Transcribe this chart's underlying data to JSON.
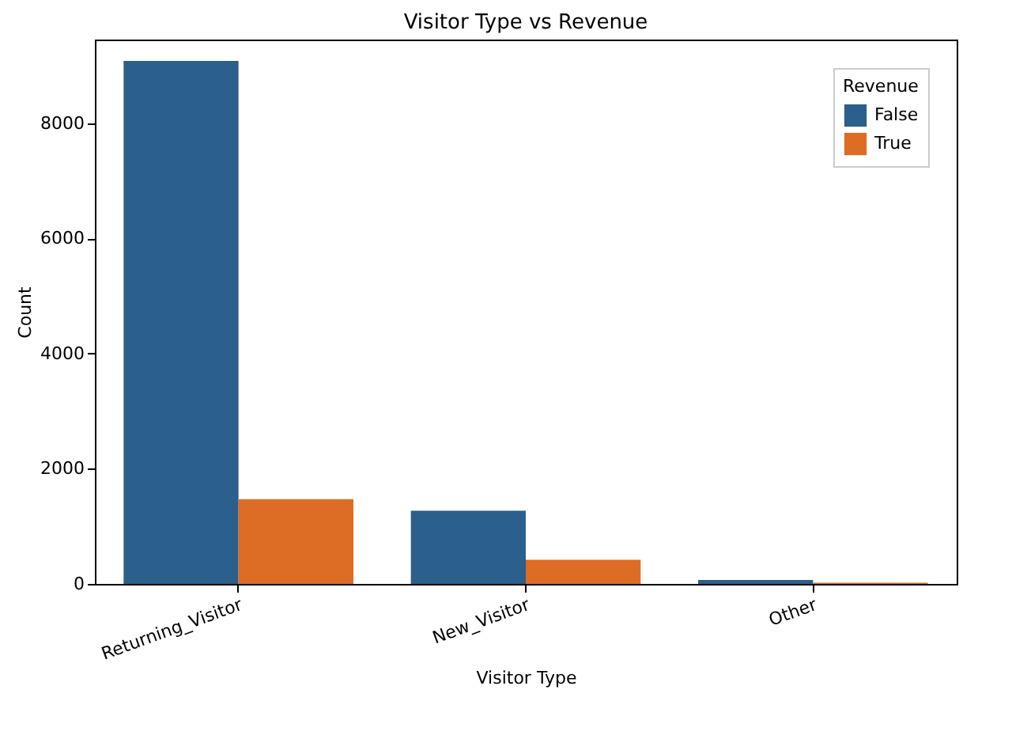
{
  "chart_data": {
    "type": "bar",
    "title": "Visitor Type vs Revenue",
    "xlabel": "Visitor Type",
    "ylabel": "Count",
    "legend_title": "Revenue",
    "categories": [
      "Returning_Visitor",
      "New_Visitor",
      "Other"
    ],
    "series": [
      {
        "name": "False",
        "color": "#2b5f8c",
        "values": [
          9080,
          1270,
          70
        ]
      },
      {
        "name": "True",
        "color": "#dd6c24",
        "values": [
          1470,
          420,
          20
        ]
      }
    ],
    "ylim": [
      0,
      9450
    ],
    "yticks": [
      0,
      2000,
      4000,
      6000,
      8000
    ],
    "grid": false,
    "legend": "top right"
  }
}
